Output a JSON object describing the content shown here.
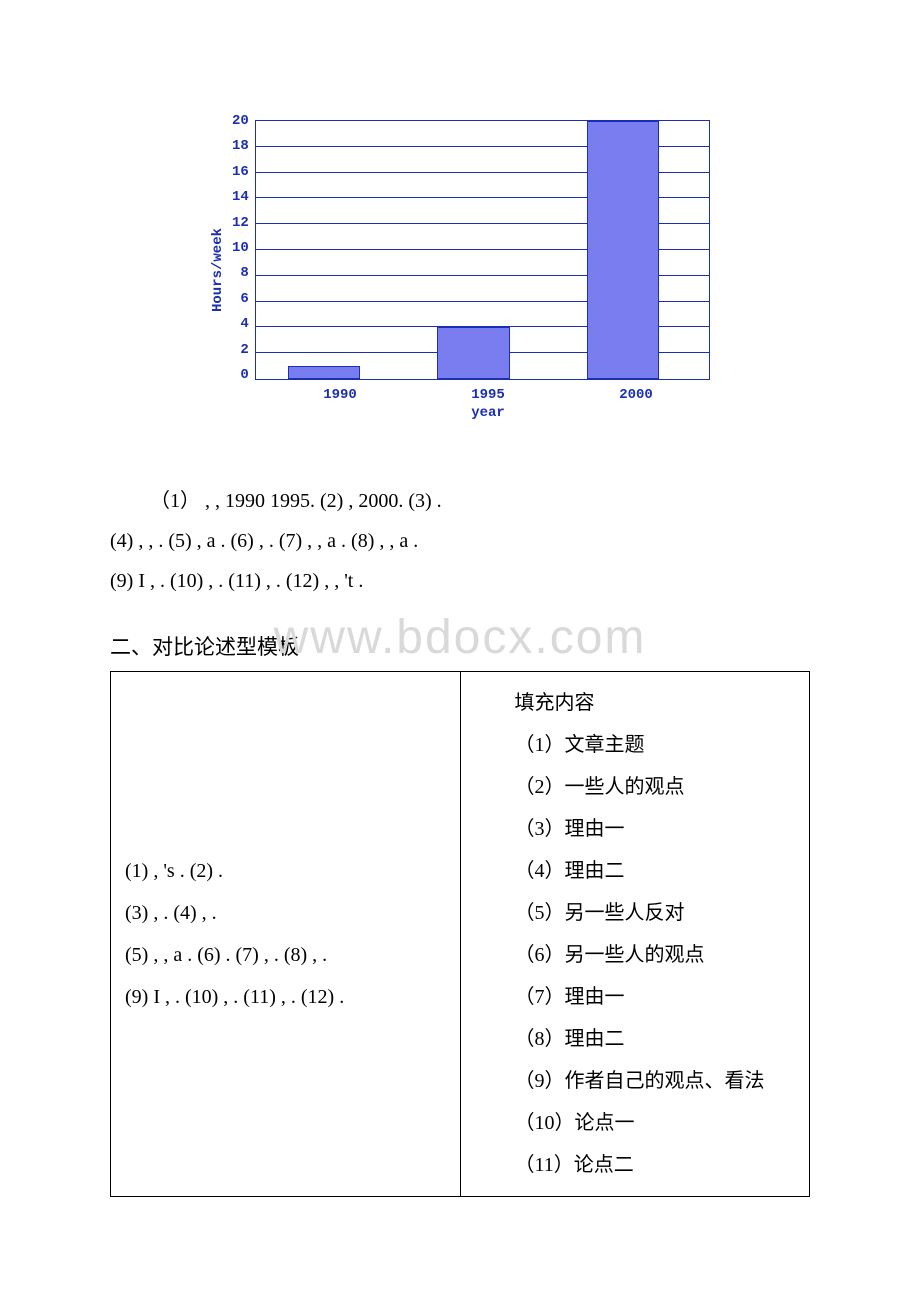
{
  "chart": {
    "type": "bar",
    "ylabel": "Hours/week",
    "xlabel": "year",
    "categories": [
      "1990",
      "1995",
      "2000"
    ],
    "values": [
      1,
      4,
      20
    ],
    "ylim": [
      0,
      20
    ],
    "ytick_step": 2,
    "yticks": [
      "20",
      "18",
      "16",
      "14",
      "12",
      "10",
      "8",
      "6",
      "4",
      "2",
      "0"
    ],
    "bar_color": "#7a7df0",
    "border_color": "#1a2fb3",
    "grid_color": "#1a2fb3",
    "bg_color": "#ffffff",
    "axis_font_color": "#1a2fb3",
    "bar_width_pct": 16,
    "bar_positions_pct": [
      15,
      48,
      81
    ],
    "axis_fontsize": 14,
    "axis_fontfamily": "Courier New"
  },
  "lines": {
    "l1": "（1）  , , 1990  1995. (2) , 2000. (3)   .",
    "l2": "(4)  , , . (5)  , a . (6)  , . (7)  , , a . (8)  , ,   a .",
    "l3": "(9)  I  , . (10)  , . (11)  ,    . (12)  , , 't ."
  },
  "watermark": "www.bdocx.com",
  "section_title": "二、对比论述型模板",
  "table": {
    "left": {
      "r1": "(1) , 's . (2) .",
      "r2": "(3) , . (4) , .",
      "r3": "(5) , , a . (6) . (7) , . (8) , .",
      "r4": "(9) I , . (10) , . (11) , . (12) ."
    },
    "right": {
      "header": "填充内容",
      "i1": "（1）文章主题",
      "i2": "（2）一些人的观点",
      "i3": "（3）理由一",
      "i4": "（4）理由二",
      "i5": "（5）另一些人反对",
      "i6": "（6）另一些人的观点",
      "i7": "（7）理由一",
      "i8": "（8）理由二",
      "i9": "（9）作者自己的观点、看法",
      "i10": "（10）论点一",
      "i11": "（11）论点二"
    }
  }
}
